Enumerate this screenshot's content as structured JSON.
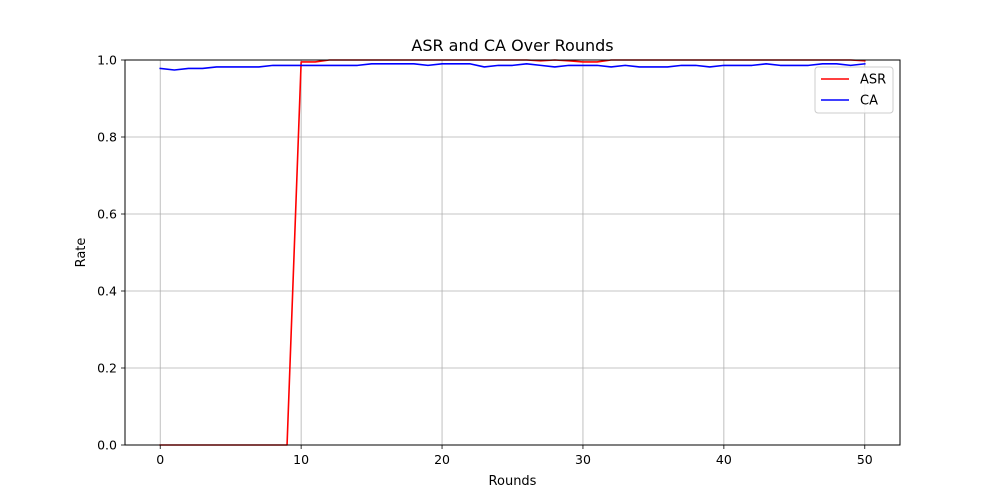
{
  "chart_data": {
    "type": "line",
    "title": "ASR and CA Over Rounds",
    "xlabel": "Rounds",
    "ylabel": "Rate",
    "xlim": [
      -2.5,
      52.5
    ],
    "ylim": [
      0.0,
      1.0
    ],
    "xticks": [
      0,
      10,
      20,
      30,
      40,
      50
    ],
    "yticks": [
      0.0,
      0.2,
      0.4,
      0.6,
      0.8,
      1.0
    ],
    "xtick_labels": [
      "0",
      "10",
      "20",
      "30",
      "40",
      "50"
    ],
    "ytick_labels": [
      "0.0",
      "0.2",
      "0.4",
      "0.6",
      "0.8",
      "1.0"
    ],
    "grid": true,
    "legend_position": "top-right",
    "x": [
      0,
      1,
      2,
      3,
      4,
      5,
      6,
      7,
      8,
      9,
      10,
      11,
      12,
      13,
      14,
      15,
      16,
      17,
      18,
      19,
      20,
      21,
      22,
      23,
      24,
      25,
      26,
      27,
      28,
      29,
      30,
      31,
      32,
      33,
      34,
      35,
      36,
      37,
      38,
      39,
      40,
      41,
      42,
      43,
      44,
      45,
      46,
      47,
      48,
      49,
      50
    ],
    "series": [
      {
        "name": "ASR",
        "color": "#ff0000",
        "values": [
          0,
          0,
          0,
          0,
          0,
          0,
          0,
          0,
          0,
          0,
          0.995,
          0.995,
          1,
          1,
          1,
          1,
          1,
          1,
          1,
          1,
          1,
          1,
          1,
          1,
          1,
          1,
          1,
          0.998,
          1,
          0.998,
          0.995,
          0.995,
          1,
          1,
          1,
          1,
          1,
          1,
          1,
          1,
          1,
          1,
          1,
          1,
          1,
          1,
          1,
          1,
          1,
          1,
          0.998
        ]
      },
      {
        "name": "CA",
        "color": "#0000ff",
        "values": [
          0.978,
          0.974,
          0.978,
          0.978,
          0.982,
          0.982,
          0.982,
          0.982,
          0.986,
          0.986,
          0.986,
          0.986,
          0.986,
          0.986,
          0.986,
          0.99,
          0.99,
          0.99,
          0.99,
          0.986,
          0.99,
          0.99,
          0.99,
          0.982,
          0.986,
          0.986,
          0.99,
          0.986,
          0.982,
          0.986,
          0.986,
          0.986,
          0.982,
          0.986,
          0.982,
          0.982,
          0.982,
          0.986,
          0.986,
          0.982,
          0.986,
          0.986,
          0.986,
          0.99,
          0.986,
          0.986,
          0.986,
          0.99,
          0.99,
          0.986,
          0.99
        ]
      }
    ]
  }
}
